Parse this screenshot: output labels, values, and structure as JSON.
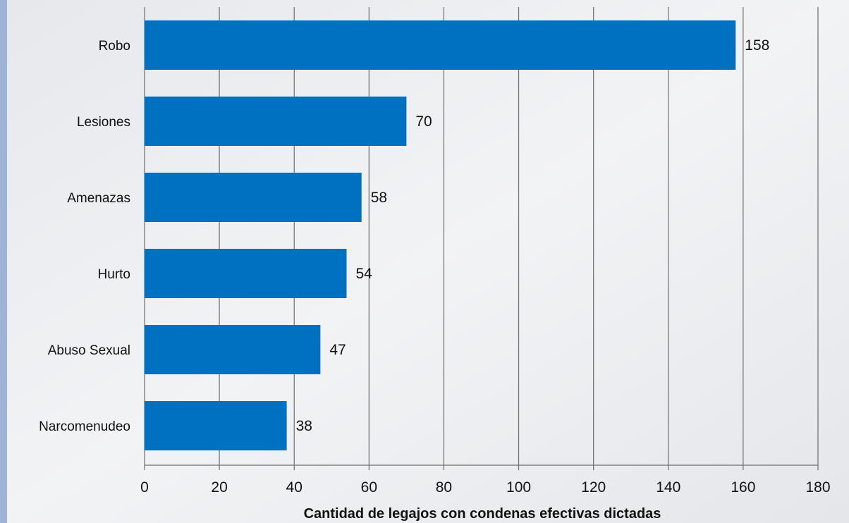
{
  "chart_data": {
    "type": "bar",
    "orientation": "horizontal",
    "title": "",
    "xlabel": "Cantidad de legajos con condenas efectivas dictadas",
    "ylabel": "",
    "categories": [
      "Robo",
      "Lesiones",
      "Amenazas",
      "Hurto",
      "Abuso Sexual",
      "Narcomenudeo"
    ],
    "values": [
      158,
      70,
      58,
      54,
      47,
      38
    ],
    "xlim": [
      0,
      180
    ],
    "xticks": [
      0,
      20,
      40,
      60,
      80,
      100,
      120,
      140,
      160,
      180
    ],
    "grid": "vertical",
    "legend": "none",
    "data_labels": true,
    "colors": {
      "bar": "#0070c0",
      "gridline": "#6e6e6e",
      "left_accent": "#9fb2d8",
      "background": "#eef0f3"
    }
  }
}
